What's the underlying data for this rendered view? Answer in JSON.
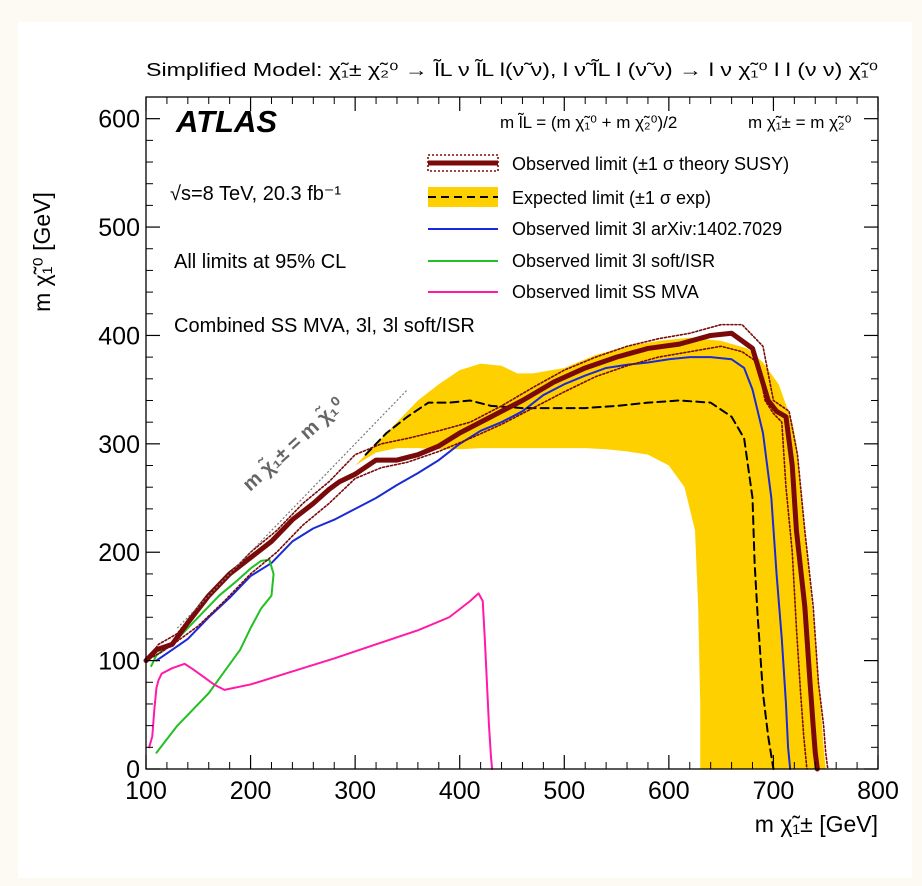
{
  "chart_data": {
    "type": "line",
    "title": "Simplified Model: χ̃₁± χ̃₂⁰ → l̃L ν l̃L l(ν̃ ν), l ν̃ l̃L l (ν̃ ν) → l ν χ̃₁⁰ l l (ν ν) χ̃₁⁰",
    "experiment": "ATLAS",
    "xlabel": "m χ̃₁± [GeV]",
    "ylabel": "m χ̃₁⁰ [GeV]",
    "xlim": [
      100,
      800
    ],
    "ylim": [
      0,
      620
    ],
    "xticks": [
      "100",
      "200",
      "300",
      "400",
      "500",
      "600",
      "700",
      "800"
    ],
    "yticks": [
      "0",
      "100",
      "200",
      "300",
      "400",
      "500",
      "600"
    ],
    "annotations": {
      "energy": "√s=8 TeV, 20.3 fb⁻¹",
      "cl": "All limits at 95% CL",
      "combined": "Combined SS MVA, 3l, 3l soft/ISR",
      "mass_relation_1": "m l̃L = (m χ̃₁⁰ + m χ̃₂⁰)/2",
      "mass_relation_2": "m χ̃₁± = m χ̃₂⁰",
      "diagonal": "m χ̃₁± = m χ̃₁⁰"
    },
    "legend_position": "top-right",
    "legend": [
      "Observed limit (±1 σ theory SUSY)",
      "Expected limit (±1 σ exp)",
      "Observed limit 3l  arXiv:1402.7029",
      "Observed limit 3l soft/ISR",
      "Observed limit SS MVA"
    ],
    "series": [
      {
        "name": "Observed limit",
        "color": "#7a0a0a",
        "x": [
          100,
          110,
          125,
          140,
          160,
          180,
          200,
          220,
          240,
          260,
          275,
          285,
          300,
          320,
          340,
          360,
          380,
          400,
          430,
          460,
          490,
          520,
          550,
          580,
          610,
          640,
          660,
          680,
          695,
          703,
          712,
          718,
          722,
          730,
          735,
          738,
          740,
          742
        ],
        "y": [
          100,
          110,
          115,
          135,
          160,
          180,
          195,
          210,
          230,
          245,
          258,
          265,
          272,
          285,
          285,
          290,
          298,
          310,
          325,
          340,
          357,
          370,
          380,
          388,
          392,
          400,
          402,
          388,
          340,
          330,
          325,
          280,
          220,
          150,
          80,
          40,
          15,
          0
        ]
      },
      {
        "name": "Observed limit +1σ theory",
        "color": "#7a0a0a",
        "x": [
          100,
          112,
          130,
          150,
          175,
          200,
          225,
          250,
          275,
          300,
          325,
          350,
          380,
          410,
          440,
          470,
          500,
          530,
          560,
          590,
          620,
          650,
          670,
          690,
          700,
          715,
          723,
          730,
          738,
          743,
          748,
          750,
          752
        ],
        "y": [
          100,
          115,
          125,
          150,
          175,
          200,
          220,
          245,
          265,
          290,
          300,
          305,
          312,
          320,
          335,
          352,
          368,
          380,
          390,
          397,
          402,
          410,
          410,
          390,
          340,
          330,
          290,
          220,
          150,
          80,
          40,
          15,
          0
        ]
      },
      {
        "name": "Observed limit -1σ theory",
        "color": "#7a0a0a",
        "x": [
          100,
          115,
          130,
          150,
          175,
          200,
          225,
          250,
          275,
          300,
          325,
          350,
          380,
          410,
          440,
          470,
          500,
          530,
          560,
          590,
          620,
          650,
          670,
          685,
          692,
          700,
          708,
          712,
          718,
          722,
          726,
          729,
          732
        ],
        "y": [
          100,
          108,
          118,
          132,
          155,
          180,
          200,
          225,
          245,
          268,
          278,
          283,
          293,
          305,
          318,
          333,
          348,
          362,
          372,
          380,
          385,
          390,
          385,
          375,
          340,
          328,
          320,
          260,
          200,
          130,
          70,
          30,
          0
        ]
      },
      {
        "name": "Expected limit",
        "color": "#000000",
        "x": [
          310,
          330,
          350,
          370,
          390,
          410,
          430,
          460,
          490,
          520,
          550,
          580,
          610,
          640,
          660,
          672,
          680,
          682,
          685,
          690,
          695,
          700
        ],
        "y": [
          290,
          310,
          325,
          338,
          338,
          340,
          335,
          333,
          333,
          333,
          335,
          338,
          340,
          338,
          325,
          305,
          250,
          190,
          140,
          70,
          30,
          0
        ]
      },
      {
        "name": "Expected limit ±1σ exp (upper)",
        "color": "#ffd000",
        "x": [
          300,
          320,
          340,
          360,
          380,
          400,
          420,
          440,
          455,
          470,
          500,
          530,
          560,
          590,
          620,
          650,
          675,
          690,
          705,
          718,
          722,
          726,
          730,
          735,
          740,
          745,
          748,
          750
        ],
        "y": [
          280,
          300,
          320,
          340,
          355,
          368,
          374,
          372,
          365,
          365,
          370,
          382,
          390,
          395,
          398,
          395,
          388,
          375,
          355,
          320,
          300,
          260,
          220,
          170,
          120,
          60,
          20,
          0
        ]
      },
      {
        "name": "Expected limit ±1σ exp (lower)",
        "color": "#ffd000",
        "x": [
          300,
          320,
          340,
          360,
          380,
          400,
          420,
          440,
          460,
          480,
          500,
          520,
          540,
          560,
          580,
          600,
          615,
          625,
          628,
          630,
          630
        ],
        "y": [
          280,
          292,
          296,
          296,
          295,
          295,
          296,
          296,
          296,
          296,
          296,
          296,
          295,
          293,
          290,
          280,
          260,
          220,
          150,
          60,
          0
        ]
      },
      {
        "name": "Observed limit 3l arXiv:1402.7029",
        "color": "#1a2ad6",
        "x": [
          110,
          125,
          140,
          160,
          180,
          200,
          220,
          240,
          260,
          280,
          300,
          320,
          340,
          360,
          380,
          400,
          420,
          440,
          460,
          480,
          500,
          520,
          540,
          560,
          580,
          600,
          620,
          640,
          660,
          672,
          680,
          690,
          698,
          703,
          708,
          712,
          714,
          716
        ],
        "y": [
          100,
          110,
          120,
          140,
          158,
          178,
          190,
          210,
          222,
          230,
          240,
          250,
          262,
          273,
          285,
          300,
          312,
          320,
          330,
          345,
          355,
          363,
          370,
          373,
          375,
          378,
          380,
          380,
          378,
          370,
          350,
          310,
          250,
          180,
          120,
          60,
          20,
          0
        ]
      },
      {
        "name": "Observed limit 3l soft/ISR",
        "color": "#22c022",
        "x": [
          105,
          110,
          125,
          140,
          155,
          170,
          185,
          200,
          210,
          218,
          222,
          220,
          210,
          200,
          190,
          175,
          160,
          145,
          130,
          118,
          110
        ],
        "y": [
          95,
          105,
          115,
          130,
          145,
          160,
          172,
          185,
          192,
          193,
          180,
          160,
          148,
          130,
          110,
          90,
          70,
          55,
          40,
          25,
          15
        ]
      },
      {
        "name": "Observed limit SS MVA",
        "color": "#ff1aa8",
        "x": [
          103,
          106,
          108,
          110,
          112,
          115,
          125,
          137,
          145,
          155,
          165,
          175,
          200,
          240,
          280,
          320,
          360,
          390,
          410,
          418,
          422,
          424,
          426,
          428,
          430,
          431
        ],
        "y": [
          20,
          30,
          55,
          75,
          82,
          88,
          93,
          97,
          92,
          85,
          78,
          73,
          78,
          90,
          102,
          115,
          128,
          140,
          155,
          162,
          155,
          120,
          80,
          40,
          10,
          0
        ]
      }
    ]
  }
}
